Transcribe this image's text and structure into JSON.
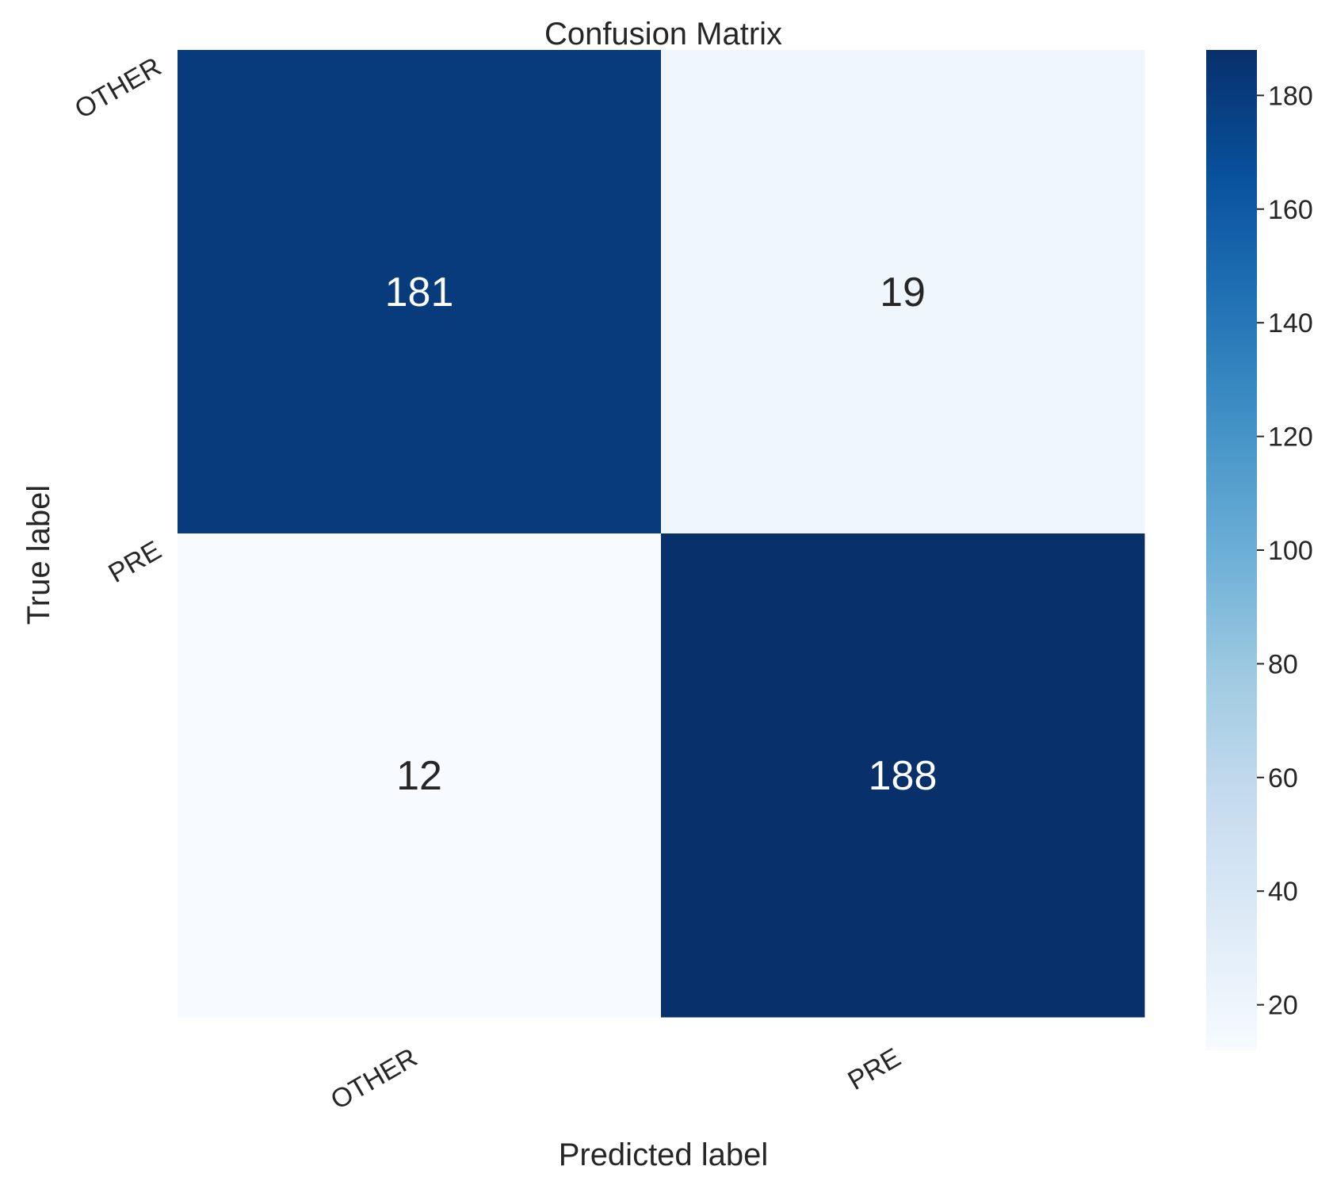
{
  "chart_data": {
    "type": "heatmap",
    "title": "Confusion Matrix",
    "xlabel": "Predicted label",
    "ylabel": "True label",
    "x_categories": [
      "OTHER",
      "PRE"
    ],
    "y_categories": [
      "OTHER",
      "PRE"
    ],
    "values": [
      [
        181,
        19
      ],
      [
        12,
        188
      ]
    ],
    "colormap": "Blues",
    "color_range": [
      12,
      188
    ],
    "colorbar_ticks": [
      20,
      40,
      60,
      80,
      100,
      120,
      140,
      160,
      180
    ],
    "grid": false,
    "legend": "colorbar-right"
  }
}
